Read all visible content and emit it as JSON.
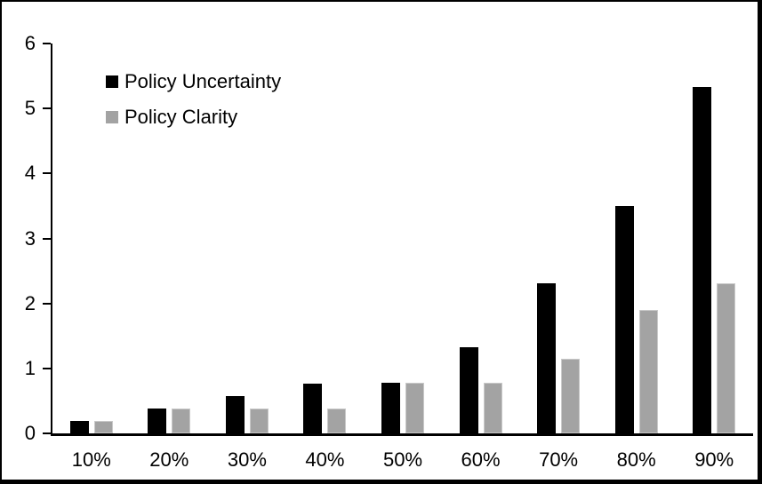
{
  "chart_data": {
    "type": "bar",
    "title": "",
    "xlabel": "",
    "ylabel": "",
    "categories": [
      "10%",
      "20%",
      "30%",
      "40%",
      "50%",
      "60%",
      "70%",
      "80%",
      "90%"
    ],
    "series": [
      {
        "name": "Policy Uncertainty",
        "color": "#000000",
        "values": [
          0.19,
          0.38,
          0.57,
          0.76,
          0.78,
          1.33,
          2.31,
          3.5,
          5.33
        ]
      },
      {
        "name": "Policy Clarity",
        "color": "#a3a3a3",
        "values": [
          0.19,
          0.38,
          0.38,
          0.38,
          0.78,
          0.78,
          1.15,
          1.9,
          2.31
        ]
      }
    ],
    "ylim": [
      0,
      6
    ],
    "yticks": [
      0,
      1,
      2,
      3,
      4,
      5,
      6
    ],
    "grid": false,
    "legend_position": "top-left",
    "frame_color": "#000000",
    "background": "#ffffff"
  }
}
